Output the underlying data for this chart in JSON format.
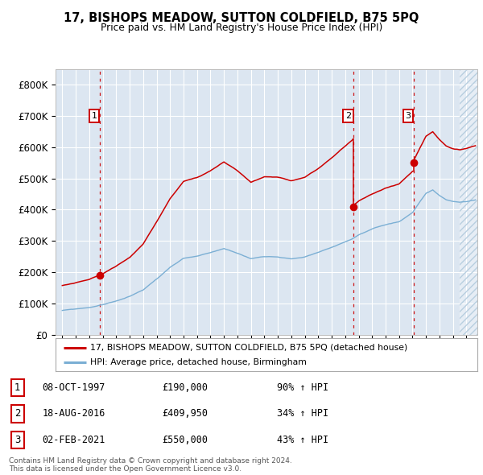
{
  "title": "17, BISHOPS MEADOW, SUTTON COLDFIELD, B75 5PQ",
  "subtitle": "Price paid vs. HM Land Registry's House Price Index (HPI)",
  "sales": [
    {
      "date_num": 1997.77,
      "price": 190000,
      "label": "1"
    },
    {
      "date_num": 2016.63,
      "price": 409950,
      "label": "2"
    },
    {
      "date_num": 2021.08,
      "price": 550000,
      "label": "3"
    }
  ],
  "sale_details": [
    {
      "label": "1",
      "date": "08-OCT-1997",
      "price": "£190,000",
      "change": "90% ↑ HPI"
    },
    {
      "label": "2",
      "date": "18-AUG-2016",
      "price": "£409,950",
      "change": "34% ↑ HPI"
    },
    {
      "label": "3",
      "date": "02-FEB-2021",
      "price": "£550,000",
      "change": "43% ↑ HPI"
    }
  ],
  "legend_line1": "17, BISHOPS MEADOW, SUTTON COLDFIELD, B75 5PQ (detached house)",
  "legend_line2": "HPI: Average price, detached house, Birmingham",
  "footer": "Contains HM Land Registry data © Crown copyright and database right 2024.\nThis data is licensed under the Open Government Licence v3.0.",
  "xlim": [
    1994.5,
    2025.8
  ],
  "ylim": [
    0,
    850000
  ],
  "yticks": [
    0,
    100000,
    200000,
    300000,
    400000,
    500000,
    600000,
    700000,
    800000
  ],
  "ytick_labels": [
    "£0",
    "£100K",
    "£200K",
    "£300K",
    "£400K",
    "£500K",
    "£600K",
    "£700K",
    "£800K"
  ],
  "xticks": [
    1995,
    1996,
    1997,
    1998,
    1999,
    2000,
    2001,
    2002,
    2003,
    2004,
    2005,
    2006,
    2007,
    2008,
    2009,
    2010,
    2011,
    2012,
    2013,
    2014,
    2015,
    2016,
    2017,
    2018,
    2019,
    2020,
    2021,
    2022,
    2023,
    2024,
    2025
  ],
  "plot_bg_color": "#dce6f1",
  "grid_color": "#ffffff",
  "red_color": "#cc0000",
  "blue_color": "#7bafd4",
  "hatch_color": "#c8d8e8"
}
